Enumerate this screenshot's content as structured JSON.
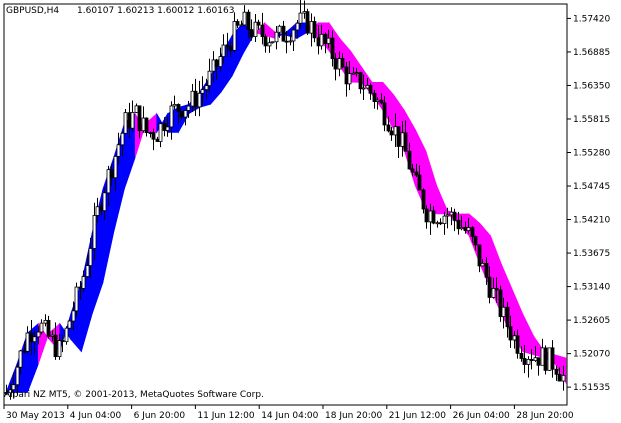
{
  "header": {
    "symbol": "GBPUSD,H4",
    "ohlc": "1.60107 1.60213 1.60012 1.60163"
  },
  "footer": {
    "copyright": "Alpari NZ MT5, © 2001-2013, MetaQuotes Software Corp."
  },
  "colors": {
    "background": "#ffffff",
    "frame": "#000000",
    "candle": "#000000",
    "cloud_up": "#0000ff",
    "cloud_down": "#ff00ff"
  },
  "chart_data": {
    "type": "candlestick",
    "title": "GBPUSD,H4",
    "ylim": [
      1.5125,
      1.5765
    ],
    "y_ticks": [
      "1.57420",
      "1.56885",
      "1.56350",
      "1.55815",
      "1.55280",
      "1.54745",
      "1.54210",
      "1.53675",
      "1.53140",
      "1.52605",
      "1.52070",
      "1.51535"
    ],
    "x_ticks": [
      "30 May 2013",
      "4 Jun 04:00",
      "6 Jun 20:00",
      "11 Jun 12:00",
      "14 Jun 04:00",
      "18 Jun 20:00",
      "21 Jun 12:00",
      "26 Jun 04:00",
      "28 Jun 20:00"
    ],
    "grid": false,
    "series": [
      {
        "values": [
          1.5145,
          1.519,
          1.524,
          1.5255,
          1.523,
          1.521,
          1.527,
          1.532,
          1.54,
          1.547,
          1.552,
          1.5575,
          1.559,
          1.556,
          1.556,
          1.559,
          1.56,
          1.5605,
          1.5625,
          1.565,
          1.5685,
          1.5715,
          1.5735,
          1.572,
          1.5715,
          1.571,
          1.572,
          1.5735,
          1.5735,
          1.571,
          1.569,
          1.5665,
          1.564,
          1.564,
          1.562,
          1.5595,
          1.5565,
          1.553,
          1.5475,
          1.5435,
          1.543,
          1.543,
          1.5415,
          1.5395,
          1.535,
          1.531,
          1.527,
          1.5235,
          1.521,
          1.5205,
          1.52,
          1.519,
          1.516
        ]
      }
    ]
  }
}
